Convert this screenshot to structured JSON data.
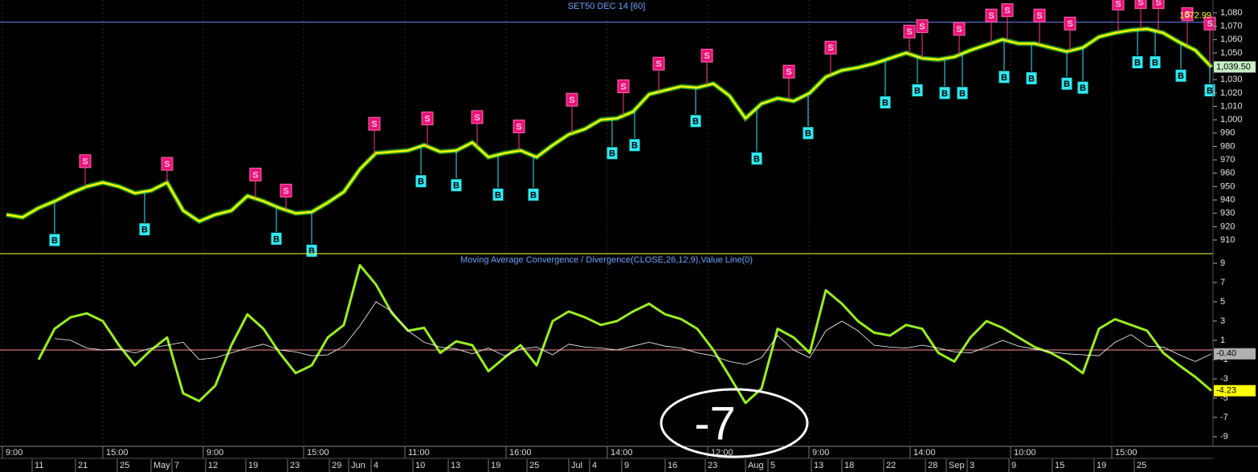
{
  "chart_data": [
    {
      "type": "line",
      "title": "SET50 DEC 14  [60]",
      "ylim": [
        899.8,
        1089.6
      ],
      "yticks": [
        910,
        920,
        930,
        940,
        950,
        960,
        970,
        980,
        990,
        {
          "value": 1000,
          "label": "1,000"
        },
        {
          "value": 1010,
          "label": "1,010"
        },
        {
          "value": 1020,
          "label": "1,020"
        },
        {
          "value": 1030,
          "label": "1,030"
        },
        {
          "value": 1040,
          "label": "1,040"
        },
        {
          "value": 1050,
          "label": "1,050"
        },
        {
          "value": 1060,
          "label": "1,060"
        },
        {
          "value": 1070,
          "label": "1,070"
        },
        {
          "value": 1080,
          "label": "1,080"
        }
      ],
      "reference_line": 1072.99,
      "series": [
        {
          "color": "#ffff00",
          "last_label": "1,039.50",
          "values": [
            929,
            927,
            934,
            939,
            945,
            950,
            953,
            950,
            945,
            947,
            953,
            932,
            924,
            929,
            932,
            943,
            939,
            934,
            930,
            931,
            938,
            946,
            963,
            975,
            976,
            977,
            981,
            976,
            977,
            983,
            972,
            975,
            977,
            972,
            981,
            989,
            993,
            1000,
            1001,
            1006,
            1019,
            1022,
            1025,
            1024,
            1027,
            1018,
            1001,
            1012,
            1016,
            1014,
            1020,
            1032,
            1037,
            1039,
            1042,
            1046,
            1050,
            1046,
            1045,
            1047,
            1052,
            1056,
            1060,
            1057,
            1057,
            1054,
            1051,
            1054,
            1062,
            1065,
            1067,
            1068,
            1065,
            1058,
            1052,
            1039.5
          ]
        }
      ],
      "signals": [
        {
          "x": 4.9,
          "value": 969,
          "label": "S"
        },
        {
          "x": 10,
          "value": 967,
          "label": "S"
        },
        {
          "x": 15.5,
          "value": 959,
          "label": "S"
        },
        {
          "x": 17.4,
          "value": 947,
          "label": "S"
        },
        {
          "x": 22.9,
          "value": 997,
          "label": "S"
        },
        {
          "x": 26.2,
          "value": 1001,
          "label": "S"
        },
        {
          "x": 29.3,
          "value": 1002,
          "label": "S"
        },
        {
          "x": 31.9,
          "value": 995,
          "label": "S"
        },
        {
          "x": 35.2,
          "value": 1015,
          "label": "S"
        },
        {
          "x": 38.4,
          "value": 1025,
          "label": "S"
        },
        {
          "x": 40.6,
          "value": 1042,
          "label": "S"
        },
        {
          "x": 43.6,
          "value": 1048,
          "label": "S"
        },
        {
          "x": 48.7,
          "value": 1036,
          "label": "S"
        },
        {
          "x": 51.3,
          "value": 1054,
          "label": "S"
        },
        {
          "x": 56.2,
          "value": 1066,
          "label": "S"
        },
        {
          "x": 57,
          "value": 1070,
          "label": "S"
        },
        {
          "x": 59.3,
          "value": 1068,
          "label": "S"
        },
        {
          "x": 61.3,
          "value": 1078,
          "label": "S"
        },
        {
          "x": 62.3,
          "value": 1082,
          "label": "S"
        },
        {
          "x": 64.3,
          "value": 1078,
          "label": "S"
        },
        {
          "x": 66.2,
          "value": 1072,
          "label": "S"
        },
        {
          "x": 69.2,
          "value": 1087,
          "label": "S"
        },
        {
          "x": 70.6,
          "value": 1088,
          "label": "S"
        },
        {
          "x": 71.7,
          "value": 1088,
          "label": "S"
        },
        {
          "x": 73.5,
          "value": 1079,
          "label": "S"
        },
        {
          "x": 74.9,
          "value": 1072,
          "label": "S"
        },
        {
          "x": 3,
          "value": 910,
          "label": "B"
        },
        {
          "x": 8.6,
          "value": 918,
          "label": "B"
        },
        {
          "x": 16.8,
          "value": 911,
          "label": "B"
        },
        {
          "x": 19,
          "value": 902,
          "label": "B"
        },
        {
          "x": 25.8,
          "value": 954,
          "label": "B"
        },
        {
          "x": 28,
          "value": 951,
          "label": "B"
        },
        {
          "x": 30.6,
          "value": 944,
          "label": "B"
        },
        {
          "x": 32.8,
          "value": 944,
          "label": "B"
        },
        {
          "x": 37.7,
          "value": 975,
          "label": "B"
        },
        {
          "x": 39.1,
          "value": 981,
          "label": "B"
        },
        {
          "x": 42.9,
          "value": 999,
          "label": "B"
        },
        {
          "x": 46.7,
          "value": 971,
          "label": "B"
        },
        {
          "x": 49.9,
          "value": 990,
          "label": "B"
        },
        {
          "x": 54.7,
          "value": 1013,
          "label": "B"
        },
        {
          "x": 56.7,
          "value": 1022,
          "label": "B"
        },
        {
          "x": 58.4,
          "value": 1020,
          "label": "B"
        },
        {
          "x": 59.5,
          "value": 1020,
          "label": "B"
        },
        {
          "x": 62.1,
          "value": 1032,
          "label": "B"
        },
        {
          "x": 63.8,
          "value": 1031,
          "label": "B"
        },
        {
          "x": 66,
          "value": 1027,
          "label": "B"
        },
        {
          "x": 67,
          "value": 1024,
          "label": "B"
        },
        {
          "x": 70.4,
          "value": 1043,
          "label": "B"
        },
        {
          "x": 71.5,
          "value": 1043,
          "label": "B"
        },
        {
          "x": 73.1,
          "value": 1033,
          "label": "B"
        },
        {
          "x": 74.9,
          "value": 1022,
          "label": "B"
        }
      ]
    },
    {
      "type": "line",
      "title": "Moving Average Convergence / Divergence(CLOSE,26,12,9),Value Line(0)",
      "ylim": [
        -9.92,
        9.83
      ],
      "yticks": [
        9,
        7,
        5,
        3,
        1,
        -1,
        -3,
        -5,
        -7,
        -9
      ],
      "value_line": 0,
      "annotation": "-7",
      "series": [
        {
          "color": "#99ee22",
          "values": [
            null,
            null,
            -1,
            2.2,
            3.4,
            3.8,
            3,
            0.5,
            -1.6,
            0,
            1.3,
            -4.5,
            -5.3,
            -3.7,
            0.5,
            3.7,
            2.2,
            -0.3,
            -2.4,
            -1.6,
            1.3,
            2.6,
            8.8,
            6.8,
            3.8,
            2,
            2.3,
            -0.3,
            0.9,
            0.5,
            -2.2,
            -0.8,
            0.5,
            -1.6,
            3,
            4,
            3.4,
            2.6,
            3,
            4,
            4.8,
            3.7,
            3.2,
            2.2,
            0,
            -2.7,
            -5.5,
            -4,
            2.2,
            1.3,
            -0.3,
            6.2,
            4.8,
            3,
            1.8,
            1.5,
            2.6,
            2.2,
            -0.3,
            -1.2,
            1.3,
            3,
            2.3,
            1.3,
            0.3,
            -0.3,
            -1.2,
            -2.4,
            2.2,
            3.2,
            2.6,
            2,
            -0.3,
            -1.6,
            -2.8,
            -4.23
          ]
        },
        {
          "color": "#ffffff",
          "last_label": "-0.40",
          "values": [
            null,
            null,
            null,
            1.2,
            1.0,
            0.2,
            0,
            0.1,
            -0.3,
            0.2,
            0.5,
            0.8,
            -1,
            -0.8,
            -0.3,
            0.2,
            0.6,
            0,
            -0.2,
            -0.6,
            -0.5,
            0.4,
            2.5,
            5,
            4,
            2,
            0.8,
            0.3,
            0.1,
            -0.4,
            0.2,
            -0.6,
            0.1,
            0.3,
            -0.5,
            0.6,
            0.3,
            0.2,
            0,
            0.4,
            0.8,
            0.4,
            0.2,
            -0.3,
            -0.6,
            -1.2,
            -1.5,
            -0.8,
            1.5,
            0,
            -0.8,
            2,
            3,
            2,
            0.5,
            0.3,
            0.2,
            0.5,
            0.2,
            -0.2,
            -0.3,
            0.3,
            1,
            0.4,
            0.1,
            -0.2,
            -0.4,
            -0.5,
            -0.6,
            0.8,
            1.6,
            0.4,
            0.3,
            -0.5,
            -1.2,
            -0.4
          ]
        }
      ]
    }
  ],
  "x_axis": {
    "xlim": [
      -0.4,
      75.1
    ],
    "major_ticks": [
      {
        "value": -0.25,
        "label": "9:00"
      },
      {
        "value": 6,
        "label": "15:00"
      },
      {
        "value": 12.25,
        "label": "9:00"
      },
      {
        "value": 18.5,
        "label": "15:00"
      },
      {
        "value": 24.8,
        "label": "11:00"
      },
      {
        "value": 31.1,
        "label": "16:00"
      },
      {
        "value": 37.4,
        "label": "14:00"
      },
      {
        "value": 43.65,
        "label": "12:00"
      },
      {
        "value": 49.95,
        "label": "9:00"
      },
      {
        "value": 56.25,
        "label": "14:00"
      },
      {
        "value": 62.5,
        "label": "10:00"
      },
      {
        "value": 68.8,
        "label": "15:00"
      }
    ],
    "minor_ticks": [
      {
        "value": 1.6,
        "label": "11"
      },
      {
        "value": 4.3,
        "label": "21"
      },
      {
        "value": 6.9,
        "label": "25"
      },
      {
        "value": 9,
        "label": "May"
      },
      {
        "value": 10.3,
        "label": "7"
      },
      {
        "value": 12.4,
        "label": "12"
      },
      {
        "value": 14.9,
        "label": "19"
      },
      {
        "value": 17.5,
        "label": "23"
      },
      {
        "value": 20.1,
        "label": "29"
      },
      {
        "value": 21.3,
        "label": "Jun"
      },
      {
        "value": 22.7,
        "label": "4"
      },
      {
        "value": 25.3,
        "label": "10"
      },
      {
        "value": 27.5,
        "label": "13"
      },
      {
        "value": 30,
        "label": "19"
      },
      {
        "value": 32.4,
        "label": "25"
      },
      {
        "value": 35,
        "label": "Jul"
      },
      {
        "value": 36.3,
        "label": "4"
      },
      {
        "value": 38.3,
        "label": "9"
      },
      {
        "value": 41,
        "label": "16"
      },
      {
        "value": 43.5,
        "label": "23"
      },
      {
        "value": 46,
        "label": "Aug"
      },
      {
        "value": 47.4,
        "label": "5"
      },
      {
        "value": 50.1,
        "label": "13"
      },
      {
        "value": 52,
        "label": "18"
      },
      {
        "value": 54.6,
        "label": "22"
      },
      {
        "value": 57.2,
        "label": "28"
      },
      {
        "value": 58.5,
        "label": "Sep"
      },
      {
        "value": 59.8,
        "label": "3"
      },
      {
        "value": 62.4,
        "label": "9"
      },
      {
        "value": 65.1,
        "label": "15"
      },
      {
        "value": 67.7,
        "label": "19"
      },
      {
        "value": 70.2,
        "label": "25"
      }
    ]
  }
}
